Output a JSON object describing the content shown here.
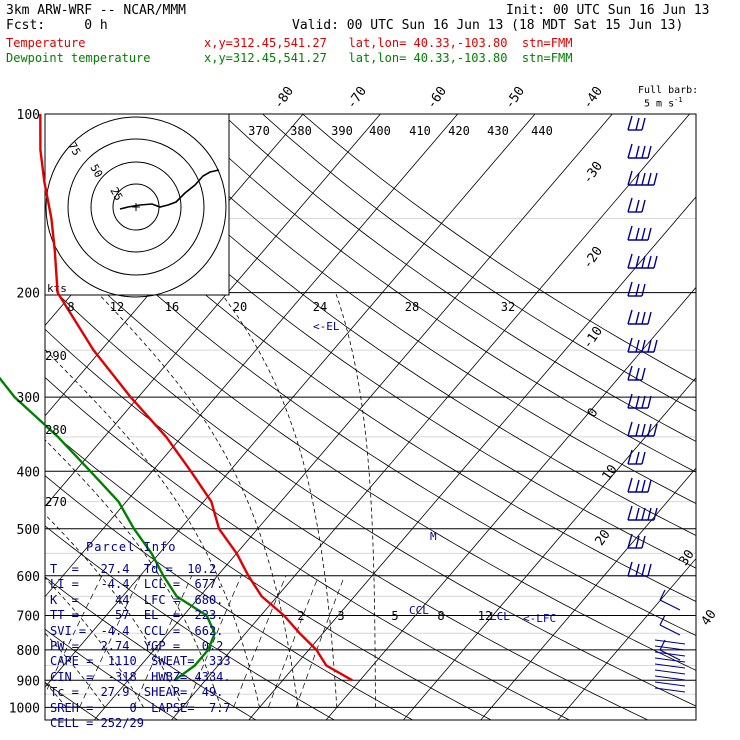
{
  "header": {
    "model": "3km ARW-WRF -- NCAR/MMM",
    "init": "Init: 00 UTC Sun 16 Jun 13",
    "fcst": "Fcst:     0 h",
    "valid": "Valid: 00 UTC Sun 16 Jun 13 (18 MDT Sat 15 Jun 13)",
    "temp_label": "Temperature",
    "dew_label": "Dewpoint temperature",
    "temp_loc": "x,y=312.45,541.27   lat,lon= 40.33,-103.80  stn=FMM",
    "dew_loc": "x,y=312.45,541.27   lat,lon= 40.33,-103.80  stn=FMM"
  },
  "legend": {
    "barb_label": "Full barb:",
    "barb_value": "5 m s",
    "barb_exp": "-1"
  },
  "colors": {
    "temperature": "#e00000",
    "dewpoint": "#008000",
    "parcel_text": "#00008b",
    "adiabat": "#000000"
  },
  "parcel": {
    "title": "Parcel Info",
    "rows": [
      "T  =   27.4  Td =  10.2",
      "LI =   -4.4  LCL =  677.",
      "K  =     44  LFC =  680.",
      "TT =     57  EL  =  223.",
      "SVI =  -4.4  CCL =  662.",
      "PW =   2.74  YGP =   0.2",
      "CAPE =  1110  SWEAT=  333",
      "CIN  =  -318  HWBZ= 4334.",
      "Tc =   27.9  SHEAR=  49.",
      "SREH =     0  LAPSE=  7.7",
      "CELL = 252/29"
    ]
  },
  "annotations": {
    "el": "<-EL",
    "m": "M",
    "ccl": "CCL",
    "lcl": "LCL",
    "lfc": "<-LFC"
  },
  "hodograph": {
    "units": "kts",
    "rings": [
      "25",
      "50",
      "75"
    ]
  },
  "chart_data": {
    "type": "line",
    "title": "",
    "pressure_ticks": [
      100,
      200,
      300,
      400,
      500,
      600,
      700,
      800,
      900,
      1000
    ],
    "isotherm_labels": [
      "-80",
      "-70",
      "-60",
      "-50",
      "-40",
      "-30",
      "-20",
      "-10",
      "0",
      "10",
      "20",
      "30",
      "40"
    ],
    "theta_labels": [
      "370",
      "380",
      "390",
      "400",
      "410",
      "420",
      "430",
      "440"
    ],
    "theta_low_labels": [
      "290",
      "280",
      "270"
    ],
    "mixratio_labels": [
      "2",
      "3",
      "5",
      "8",
      "12"
    ],
    "hodo_speed_labels": [
      "8",
      "12",
      "16",
      "20",
      "24",
      "28",
      "32"
    ],
    "ylim": [
      1000,
      100
    ],
    "series": [
      {
        "name": "Temperature",
        "color": "#e00000",
        "points": [
          [
            900,
            29
          ],
          [
            850,
            24
          ],
          [
            800,
            21
          ],
          [
            750,
            17
          ],
          [
            700,
            13
          ],
          [
            650,
            8
          ],
          [
            600,
            4
          ],
          [
            550,
            0
          ],
          [
            500,
            -5
          ],
          [
            450,
            -9
          ],
          [
            400,
            -15
          ],
          [
            350,
            -22
          ],
          [
            300,
            -31
          ],
          [
            250,
            -41
          ],
          [
            200,
            -52
          ],
          [
            170,
            -57
          ],
          [
            150,
            -61
          ],
          [
            130,
            -66
          ],
          [
            115,
            -70
          ],
          [
            100,
            -74
          ]
        ]
      },
      {
        "name": "Dewpoint temperature",
        "color": "#008000",
        "points": [
          [
            900,
            6
          ],
          [
            850,
            7
          ],
          [
            800,
            7
          ],
          [
            750,
            6
          ],
          [
            700,
            3
          ],
          [
            650,
            -3
          ],
          [
            600,
            -7
          ],
          [
            550,
            -11
          ],
          [
            500,
            -16
          ],
          [
            450,
            -21
          ],
          [
            400,
            -28
          ],
          [
            350,
            -36
          ],
          [
            300,
            -46
          ],
          [
            250,
            -56
          ],
          [
            230,
            -67
          ],
          [
            200,
            -72
          ],
          [
            170,
            -78
          ],
          [
            150,
            -80
          ],
          [
            130,
            -82
          ],
          [
            115,
            -84
          ],
          [
            100,
            -86
          ]
        ]
      }
    ]
  }
}
